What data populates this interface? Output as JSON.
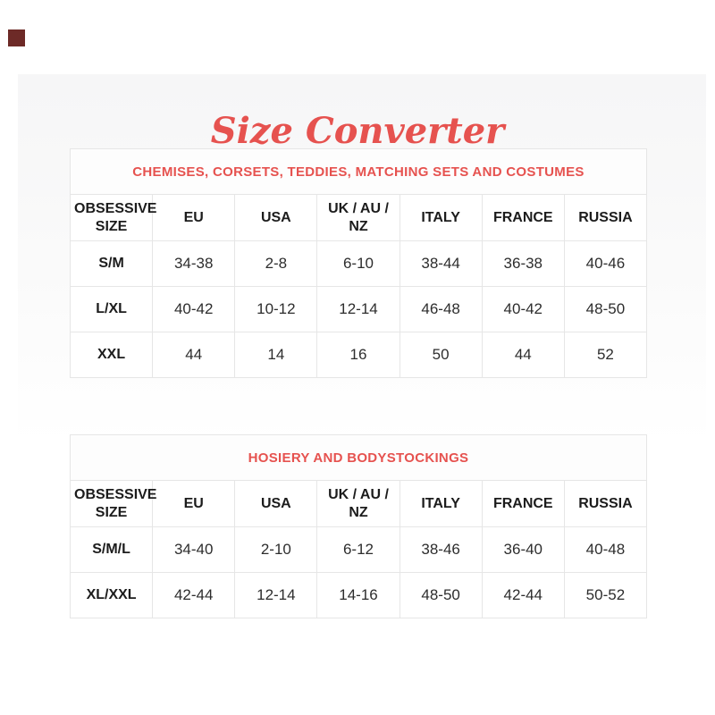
{
  "page": {
    "title": "Size Converter",
    "accent_color": "#e6524f",
    "corner_mark_color": "#6d2a27",
    "panel_color": "#f6f6f7"
  },
  "tables": [
    {
      "title": "CHEMISES, CORSETS, TEDDIES, MATCHING SETS AND COSTUMES",
      "columns": [
        "OBSESSIVE SIZE",
        "EU",
        "USA",
        "UK / AU / NZ",
        "ITALY",
        "FRANCE",
        "RUSSIA"
      ],
      "rows": [
        {
          "size": "S/M",
          "values": [
            "34-38",
            "2-8",
            "6-10",
            "38-44",
            "36-38",
            "40-46"
          ]
        },
        {
          "size": "L/XL",
          "values": [
            "40-42",
            "10-12",
            "12-14",
            "46-48",
            "40-42",
            "48-50"
          ]
        },
        {
          "size": "XXL",
          "values": [
            "44",
            "14",
            "16",
            "50",
            "44",
            "52"
          ]
        }
      ]
    },
    {
      "title": "HOSIERY AND BODYSTOCKINGS",
      "columns": [
        "OBSESSIVE SIZE",
        "EU",
        "USA",
        "UK / AU / NZ",
        "ITALY",
        "FRANCE",
        "RUSSIA"
      ],
      "rows": [
        {
          "size": "S/M/L",
          "values": [
            "34-40",
            "2-10",
            "6-12",
            "38-46",
            "36-40",
            "40-48"
          ]
        },
        {
          "size": "XL/XXL",
          "values": [
            "42-44",
            "12-14",
            "14-16",
            "48-50",
            "42-44",
            "50-52"
          ]
        }
      ]
    }
  ]
}
